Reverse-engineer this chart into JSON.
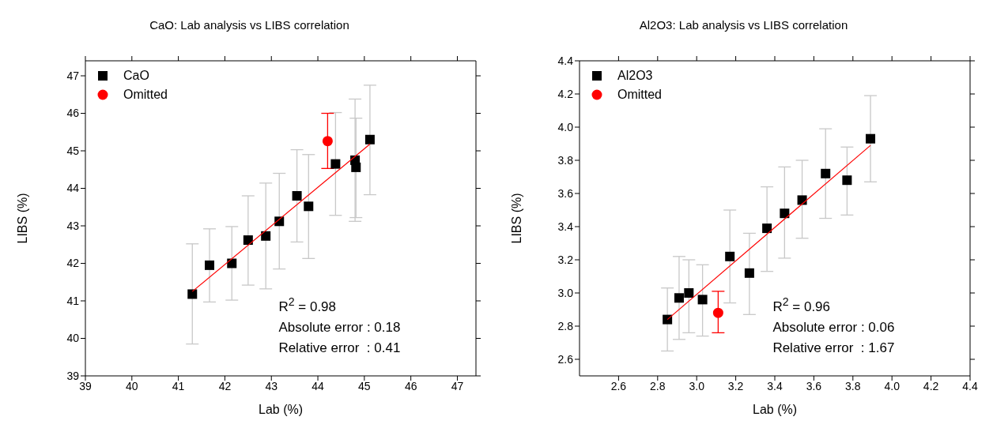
{
  "chart_data": [
    {
      "type": "scatter",
      "title": "CaO: Lab analysis vs LIBS correlation",
      "xlabel": "Lab (%)",
      "ylabel": "LIBS (%)",
      "xlim": [
        39,
        47.4
      ],
      "ylim": [
        39,
        47.4
      ],
      "xticks": [
        39,
        40,
        41,
        42,
        43,
        44,
        45,
        46,
        47
      ],
      "yticks": [
        39,
        40,
        41,
        42,
        43,
        44,
        45,
        46,
        47
      ],
      "legend": "top left",
      "series": [
        {
          "name": "CaO",
          "marker": "square",
          "color": "#000000",
          "x": [
            41.3,
            41.67,
            42.15,
            42.5,
            42.88,
            43.17,
            43.55,
            43.8,
            44.38,
            44.8,
            44.82,
            45.12
          ],
          "values": [
            41.18,
            41.95,
            42.0,
            42.62,
            42.73,
            43.12,
            43.8,
            43.52,
            44.65,
            44.75,
            44.56,
            45.3
          ],
          "errors": [
            [
              39.85,
              42.52
            ],
            [
              40.97,
              42.92
            ],
            [
              41.02,
              42.98
            ],
            [
              41.42,
              43.8
            ],
            [
              41.32,
              44.14
            ],
            [
              41.85,
              44.4
            ],
            [
              42.57,
              45.03
            ],
            [
              42.13,
              44.9
            ],
            [
              43.28,
              46.02
            ],
            [
              43.12,
              46.38
            ],
            [
              43.22,
              45.87
            ],
            [
              43.83,
              46.75
            ]
          ]
        },
        {
          "name": "Omitted",
          "marker": "circle",
          "color": "#ff0000",
          "x": [
            44.21
          ],
          "values": [
            45.26
          ],
          "errors": [
            [
              44.53,
              46.0
            ]
          ]
        },
        {
          "type": "line",
          "color": "#ff0000",
          "x": [
            41.3,
            45.12
          ],
          "values": [
            41.25,
            45.18
          ]
        }
      ],
      "annotations": [
        "R$^{2}$ = 0.98",
        "Absolute error : 0.18",
        "Relative error  : 0.41"
      ]
    },
    {
      "type": "scatter",
      "title": "Al2O3: Lab analysis vs LIBS correlation",
      "xlabel": "Lab (%)",
      "ylabel": "LIBS (%)",
      "xlim": [
        2.4,
        4.4
      ],
      "ylim": [
        2.5,
        4.4
      ],
      "xticks": [
        2.6,
        2.8,
        {
          "value": 3,
          "label": "3.0"
        },
        3.2,
        3.4,
        3.6,
        3.8,
        {
          "value": 4,
          "label": "4.0"
        },
        4.2,
        4.4
      ],
      "yticks": [
        2.6,
        2.8,
        {
          "value": 3,
          "label": "3.0"
        },
        3.2,
        3.4,
        3.6,
        3.8,
        {
          "value": 4,
          "label": "4.0"
        },
        4.2,
        4.4
      ],
      "legend": "top left",
      "series": [
        {
          "name": "Al2O3",
          "marker": "square",
          "color": "#000000",
          "x": [
            2.85,
            2.91,
            2.96,
            3.03,
            3.17,
            3.27,
            3.36,
            3.45,
            3.54,
            3.66,
            3.77,
            3.89
          ],
          "values": [
            2.84,
            2.97,
            3.0,
            2.96,
            3.22,
            3.12,
            3.39,
            3.48,
            3.56,
            3.72,
            3.68,
            3.93
          ],
          "errors": [
            [
              2.65,
              3.03
            ],
            [
              2.72,
              3.22
            ],
            [
              2.76,
              3.2
            ],
            [
              2.74,
              3.17
            ],
            [
              2.94,
              3.5
            ],
            [
              2.87,
              3.36
            ],
            [
              3.13,
              3.64
            ],
            [
              3.21,
              3.76
            ],
            [
              3.33,
              3.8
            ],
            [
              3.45,
              3.99
            ],
            [
              3.47,
              3.88
            ],
            [
              3.67,
              4.19
            ]
          ]
        },
        {
          "name": "Omitted",
          "marker": "circle",
          "color": "#ff0000",
          "x": [
            3.11
          ],
          "values": [
            2.88
          ],
          "errors": [
            [
              2.76,
              3.01
            ]
          ]
        },
        {
          "type": "line",
          "color": "#ff0000",
          "x": [
            2.85,
            3.89
          ],
          "values": [
            2.84,
            3.89
          ]
        }
      ],
      "annotations": [
        "R$^{2}$ = 0.96",
        "Absolute error : 0.06",
        "Relative error  : 1.67"
      ]
    }
  ]
}
